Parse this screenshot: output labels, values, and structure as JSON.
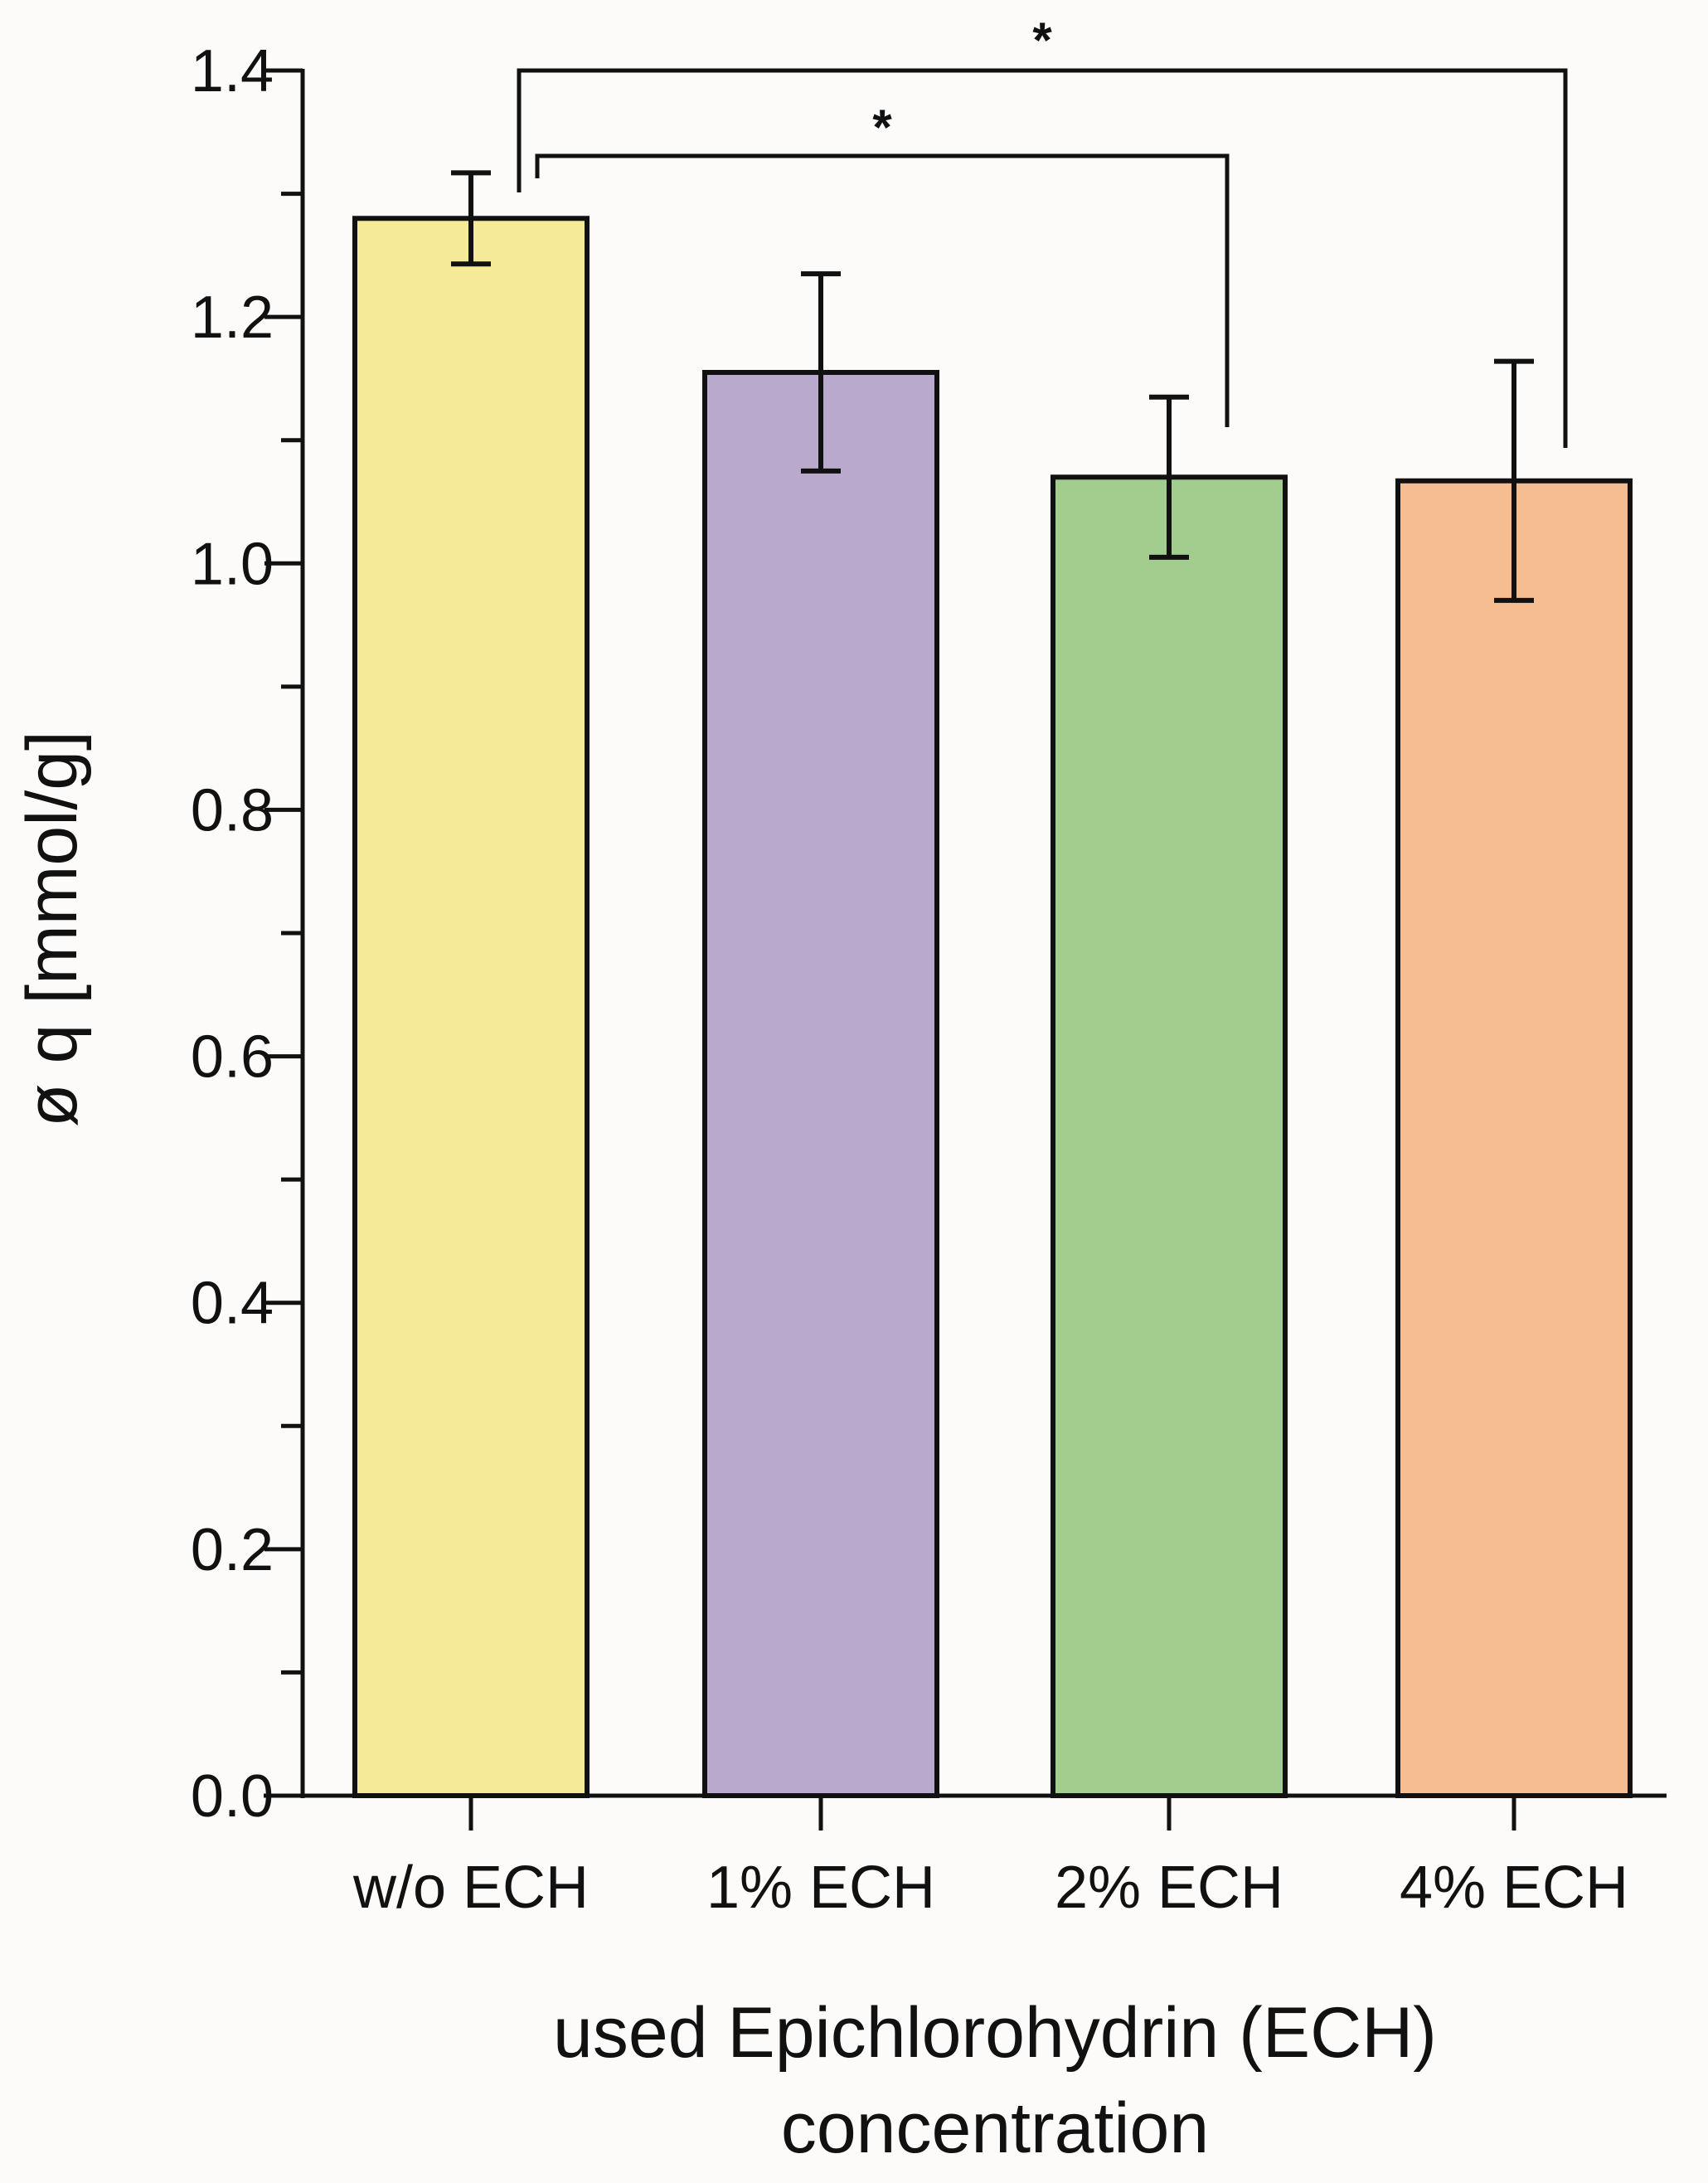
{
  "chart_data": {
    "type": "bar",
    "categories": [
      "w/o ECH",
      "1% ECH",
      "2% ECH",
      "4% ECH"
    ],
    "values": [
      1.28,
      1.155,
      1.07,
      1.067
    ],
    "errors": [
      0.037,
      0.08,
      0.065,
      0.097
    ],
    "colors": [
      "#f5ea98",
      "#b9a9cc",
      "#a2cd8e",
      "#f5bd90"
    ],
    "ylabel": "ø q [mmol/g]",
    "xlabel_lines": [
      "used Epichlorohydrin (ECH)",
      "concentration"
    ],
    "ylim": [
      0,
      1.4
    ],
    "yticks": [
      "0.0",
      "0.2",
      "0.4",
      "0.6",
      "0.8",
      "1.0",
      "1.2",
      "1.4"
    ],
    "grid": false,
    "significance": [
      {
        "from": "w/o ECH",
        "to": "2% ECH",
        "label": "*"
      },
      {
        "from": "w/o ECH",
        "to": "4% ECH",
        "label": "*"
      }
    ]
  }
}
